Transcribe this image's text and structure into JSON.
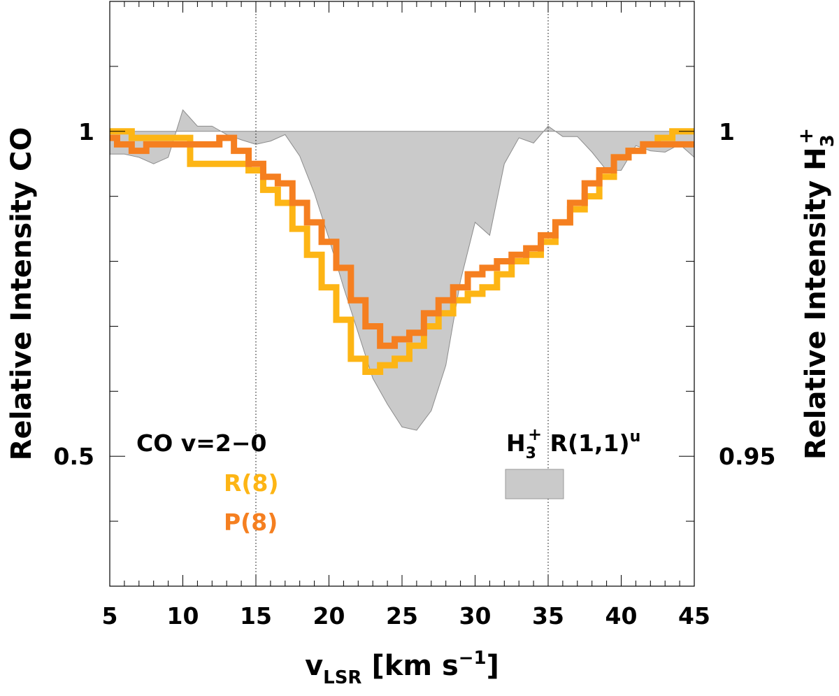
{
  "chart_data": {
    "type": "line",
    "x": {
      "label_main": "v",
      "label_sub": "LSR",
      "label_units": "[km s",
      "label_exp": "−1",
      "label_close": "]",
      "range": [
        5,
        45
      ],
      "ticks": [
        5,
        10,
        15,
        20,
        25,
        30,
        35,
        40,
        45
      ],
      "tick_labels": [
        "5",
        "10",
        "15",
        "20",
        "25",
        "30",
        "35",
        "40",
        "45"
      ],
      "reference_lines": [
        15,
        35
      ]
    },
    "y_left": {
      "label": "Relative Intensity CO",
      "range": [
        0.3,
        1.2
      ],
      "ticks": [
        1,
        0.5
      ],
      "tick_labels": [
        "1",
        "0.5"
      ]
    },
    "y_right": {
      "label_main": "Relative Intensity H",
      "label_sub": "3",
      "label_sup": "+",
      "range": [
        0.93,
        1.02
      ],
      "ticks": [
        1,
        0.95
      ],
      "tick_labels": [
        "1",
        "0.95"
      ]
    },
    "legend": {
      "co_title": "CO v=2−0",
      "h3_label_main": "H",
      "h3_label_sub": "3",
      "h3_label_sup": "+",
      "h3_label_rest": " R(1,1)",
      "h3_label_u": "u"
    },
    "series": [
      {
        "name": "R(8)",
        "axis": "left",
        "style": "step",
        "color": "#FDB515",
        "x": [
          5,
          6,
          7,
          8,
          9,
          10,
          11,
          12,
          13,
          14,
          15,
          16,
          17,
          18,
          19,
          20,
          21,
          22,
          23,
          24,
          25,
          26,
          27,
          28,
          29,
          30,
          31,
          32,
          33,
          34,
          35,
          36,
          37,
          38,
          39,
          40,
          41,
          42,
          43,
          44,
          45
        ],
        "values": [
          1.0,
          1.0,
          0.99,
          0.99,
          0.99,
          0.99,
          0.95,
          0.95,
          0.95,
          0.95,
          0.94,
          0.91,
          0.89,
          0.85,
          0.81,
          0.76,
          0.71,
          0.65,
          0.63,
          0.64,
          0.65,
          0.67,
          0.7,
          0.72,
          0.74,
          0.75,
          0.76,
          0.78,
          0.8,
          0.81,
          0.83,
          0.86,
          0.88,
          0.9,
          0.93,
          0.96,
          0.97,
          0.98,
          0.99,
          1.0,
          1.0
        ]
      },
      {
        "name": "P(8)",
        "axis": "left",
        "style": "step",
        "color": "#F57F20",
        "x": [
          5,
          6,
          7,
          8,
          9,
          10,
          11,
          12,
          13,
          14,
          15,
          16,
          17,
          18,
          19,
          20,
          21,
          22,
          23,
          24,
          25,
          26,
          27,
          28,
          29,
          30,
          31,
          32,
          33,
          34,
          35,
          36,
          37,
          38,
          39,
          40,
          41,
          42,
          43,
          44,
          45
        ],
        "values": [
          0.99,
          0.98,
          0.97,
          0.98,
          0.98,
          0.98,
          0.98,
          0.98,
          0.99,
          0.97,
          0.95,
          0.93,
          0.92,
          0.89,
          0.86,
          0.83,
          0.79,
          0.74,
          0.7,
          0.67,
          0.68,
          0.69,
          0.72,
          0.74,
          0.76,
          0.78,
          0.79,
          0.8,
          0.81,
          0.82,
          0.84,
          0.86,
          0.89,
          0.92,
          0.94,
          0.96,
          0.97,
          0.98,
          0.98,
          0.98,
          0.98
        ]
      },
      {
        "name": "H3+ R(1,1)u",
        "axis": "right",
        "style": "area",
        "color": "#CACACA",
        "baseline": 1.0,
        "x": [
          5,
          6,
          7,
          8,
          9,
          10,
          11,
          12,
          13,
          14,
          15,
          16,
          17,
          18,
          19,
          20,
          21,
          22,
          23,
          24,
          25,
          26,
          27,
          28,
          29,
          30,
          31,
          32,
          33,
          34,
          35,
          36,
          37,
          38,
          39,
          40,
          41,
          42,
          43,
          44,
          45
        ],
        "values": [
          0.9965,
          0.9965,
          0.996,
          0.995,
          0.996,
          1.0033,
          1.0008,
          1.0008,
          0.9995,
          0.9987,
          0.998,
          0.9985,
          0.9995,
          0.9962,
          0.9905,
          0.9835,
          0.976,
          0.969,
          0.962,
          0.958,
          0.9545,
          0.954,
          0.957,
          0.964,
          0.977,
          0.986,
          0.984,
          0.995,
          0.999,
          0.9982,
          1.0008,
          0.9992,
          0.9992,
          0.9968,
          0.994,
          0.994,
          0.9978,
          0.997,
          0.9968,
          0.998,
          0.996
        ]
      }
    ],
    "legend_entries": [
      "R(8)",
      "P(8)"
    ]
  }
}
